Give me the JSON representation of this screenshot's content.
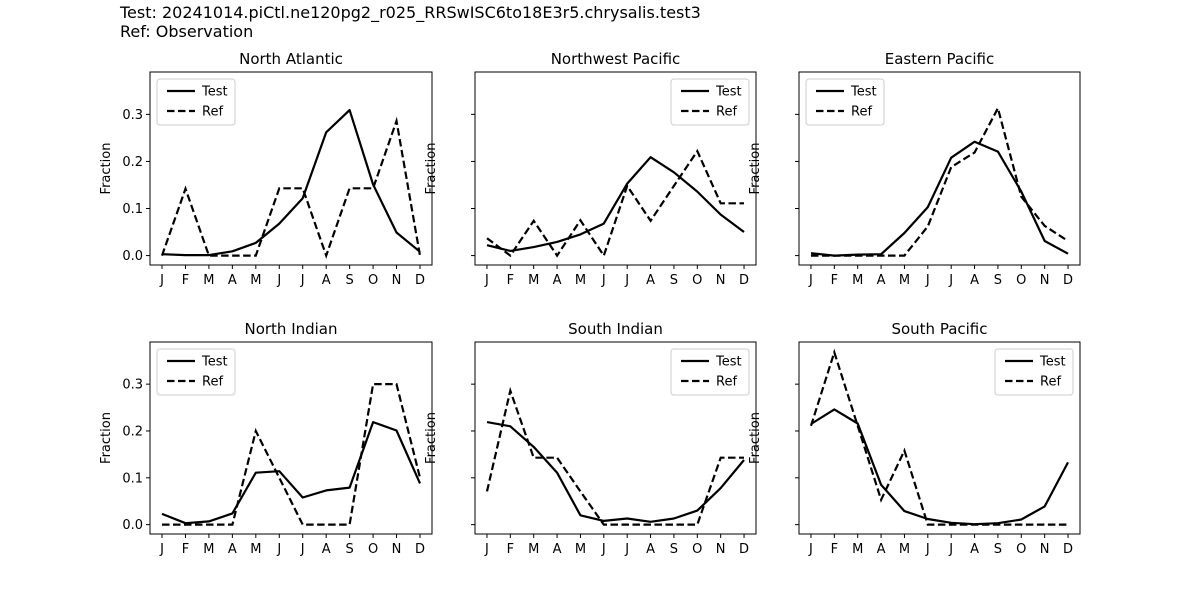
{
  "figure": {
    "suptitle_line1": "Test: 20241014.piCtl.ne120pg2_r025_RRSwISC6to18E3r5.chrysalis.test3",
    "suptitle_line2": "Ref: Observation"
  },
  "months": [
    "J",
    "F",
    "M",
    "A",
    "M",
    "J",
    "J",
    "A",
    "S",
    "O",
    "N",
    "D"
  ],
  "chart_data": [
    {
      "type": "line",
      "title": "North Atlantic",
      "ylabel": "Fraction",
      "ylim": [
        -0.02,
        0.39
      ],
      "yticks": [
        "0.0",
        "0.1",
        "0.2",
        "0.3"
      ],
      "legend_loc": "upper-left",
      "series": [
        {
          "name": "Test",
          "style": "solid",
          "values": [
            0.003,
            0.001,
            0.001,
            0.009,
            0.027,
            0.068,
            0.122,
            0.262,
            0.309,
            0.151,
            0.049,
            0.008
          ]
        },
        {
          "name": "Ref",
          "style": "dashed",
          "values": [
            0.0,
            0.142,
            0.0,
            0.0,
            0.0,
            0.143,
            0.143,
            0.0,
            0.143,
            0.143,
            0.286,
            0.0
          ]
        }
      ]
    },
    {
      "type": "line",
      "title": "Northwest Pacific",
      "ylabel": "Fraction",
      "ylim": [
        -0.02,
        0.39
      ],
      "yticks": [
        "",
        "",
        "",
        ""
      ],
      "legend_loc": "upper-right",
      "series": [
        {
          "name": "Test",
          "style": "solid",
          "values": [
            0.022,
            0.01,
            0.018,
            0.029,
            0.045,
            0.068,
            0.153,
            0.209,
            0.177,
            0.136,
            0.087,
            0.05
          ]
        },
        {
          "name": "Ref",
          "style": "dashed",
          "values": [
            0.037,
            0.0,
            0.074,
            0.0,
            0.075,
            0.0,
            0.148,
            0.074,
            0.148,
            0.222,
            0.111,
            0.111
          ]
        }
      ]
    },
    {
      "type": "line",
      "title": "Eastern Pacific",
      "ylabel": "Fraction",
      "ylim": [
        -0.02,
        0.39
      ],
      "yticks": [
        "",
        "",
        "",
        ""
      ],
      "legend_loc": "upper-left",
      "series": [
        {
          "name": "Test",
          "style": "solid",
          "values": [
            0.005,
            0.0,
            0.002,
            0.003,
            0.048,
            0.103,
            0.208,
            0.242,
            0.221,
            0.136,
            0.031,
            0.004
          ]
        },
        {
          "name": "Ref",
          "style": "dashed",
          "values": [
            0.0,
            0.0,
            0.0,
            0.0,
            0.0,
            0.062,
            0.188,
            0.219,
            0.313,
            0.125,
            0.063,
            0.031
          ]
        }
      ]
    },
    {
      "type": "line",
      "title": "North Indian",
      "ylabel": "Fraction",
      "ylim": [
        -0.02,
        0.39
      ],
      "yticks": [
        "0.0",
        "0.1",
        "0.2",
        "0.3"
      ],
      "legend_loc": "upper-left",
      "series": [
        {
          "name": "Test",
          "style": "solid",
          "values": [
            0.023,
            0.003,
            0.007,
            0.024,
            0.111,
            0.114,
            0.058,
            0.073,
            0.079,
            0.219,
            0.201,
            0.088
          ]
        },
        {
          "name": "Ref",
          "style": "dashed",
          "values": [
            0.0,
            0.0,
            0.0,
            0.0,
            0.2,
            0.1,
            0.0,
            0.0,
            0.0,
            0.3,
            0.3,
            0.1
          ]
        }
      ]
    },
    {
      "type": "line",
      "title": "South Indian",
      "ylabel": "Fraction",
      "ylim": [
        -0.02,
        0.39
      ],
      "yticks": [
        "",
        "",
        "",
        ""
      ],
      "legend_loc": "upper-right",
      "series": [
        {
          "name": "Test",
          "style": "solid",
          "values": [
            0.219,
            0.21,
            0.166,
            0.111,
            0.02,
            0.008,
            0.013,
            0.006,
            0.013,
            0.03,
            0.078,
            0.138
          ]
        },
        {
          "name": "Ref",
          "style": "dashed",
          "values": [
            0.071,
            0.286,
            0.143,
            0.143,
            0.071,
            0.0,
            0.0,
            0.0,
            0.0,
            0.0,
            0.143,
            0.143
          ]
        }
      ]
    },
    {
      "type": "line",
      "title": "South Pacific",
      "ylabel": "Fraction",
      "ylim": [
        -0.02,
        0.39
      ],
      "yticks": [
        "",
        "",
        "",
        ""
      ],
      "legend_loc": "upper-right",
      "series": [
        {
          "name": "Test",
          "style": "solid",
          "values": [
            0.215,
            0.246,
            0.216,
            0.085,
            0.029,
            0.012,
            0.004,
            0.001,
            0.003,
            0.011,
            0.039,
            0.133
          ]
        },
        {
          "name": "Ref",
          "style": "dashed",
          "values": [
            0.211,
            0.368,
            0.211,
            0.053,
            0.158,
            0.0,
            0.0,
            0.0,
            0.0,
            0.0,
            0.0,
            0.0
          ]
        }
      ]
    }
  ]
}
